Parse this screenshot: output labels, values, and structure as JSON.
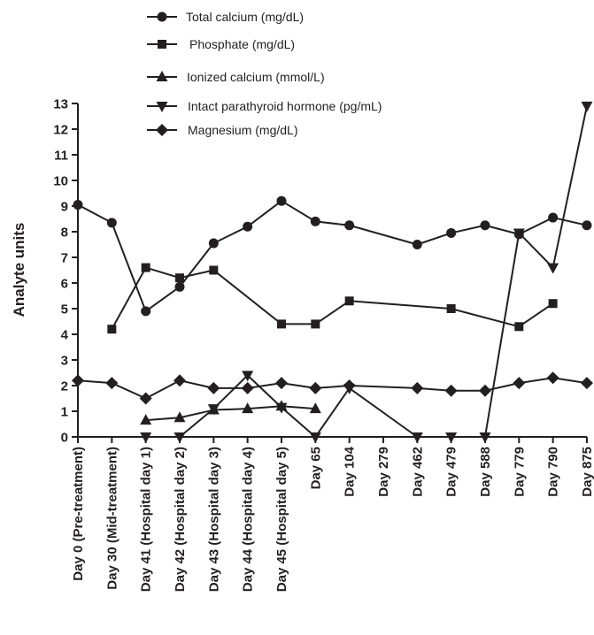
{
  "chart_data": {
    "type": "line",
    "ylabel": "Analyte units",
    "xlabel": "",
    "ylim": [
      0,
      13
    ],
    "yticks": [
      0,
      1,
      2,
      3,
      4,
      5,
      6,
      7,
      8,
      9,
      10,
      11,
      12,
      13
    ],
    "grid": false,
    "legend_position": "top",
    "categories": [
      "Day 0 (Pre-treatment)",
      "Day 30 (Mid-treatment)",
      "Day 41 (Hospital day 1)",
      "Day 42 (Hospital day 2)",
      "Day 43 (Hospital day 3)",
      "Day 44 (Hospital day 4)",
      "Day 45 (Hospital day 5)",
      "Day 65",
      "Day 104",
      "Day 279",
      "Day 462",
      "Day 479",
      "Day 588",
      "Day 779",
      "Day 790",
      "Day 875"
    ],
    "series": [
      {
        "name": "Total calcium (mg/dL)",
        "marker": "circle",
        "values": [
          9.05,
          8.35,
          4.9,
          5.85,
          7.55,
          8.2,
          9.2,
          8.4,
          8.25,
          null,
          7.5,
          7.95,
          8.25,
          7.9,
          8.55,
          8.25
        ]
      },
      {
        "name": "Phosphate (mg/dL)",
        "marker": "square",
        "values": [
          null,
          4.2,
          6.6,
          6.2,
          6.5,
          null,
          4.4,
          4.4,
          5.3,
          null,
          null,
          5.0,
          null,
          4.3,
          5.2,
          null
        ]
      },
      {
        "name": "Ionized calcium (mmol/L)",
        "marker": "triangle-up",
        "values": [
          null,
          null,
          0.65,
          0.75,
          1.05,
          1.1,
          1.2,
          1.1,
          null,
          null,
          null,
          null,
          null,
          null,
          null,
          null
        ]
      },
      {
        "name": "Intact parathyroid hormone (pg/mL)",
        "marker": "triangle-down",
        "values": [
          null,
          null,
          0.0,
          0.0,
          1.1,
          2.4,
          1.15,
          0.0,
          1.9,
          null,
          0.0,
          0.0,
          0.0,
          7.95,
          6.6,
          12.9
        ]
      },
      {
        "name": "Magnesium (mg/dL)",
        "marker": "diamond",
        "values": [
          2.2,
          2.1,
          1.5,
          2.2,
          1.9,
          1.9,
          2.1,
          1.9,
          2.0,
          null,
          1.9,
          1.8,
          1.8,
          2.1,
          2.3,
          2.1
        ]
      }
    ]
  }
}
